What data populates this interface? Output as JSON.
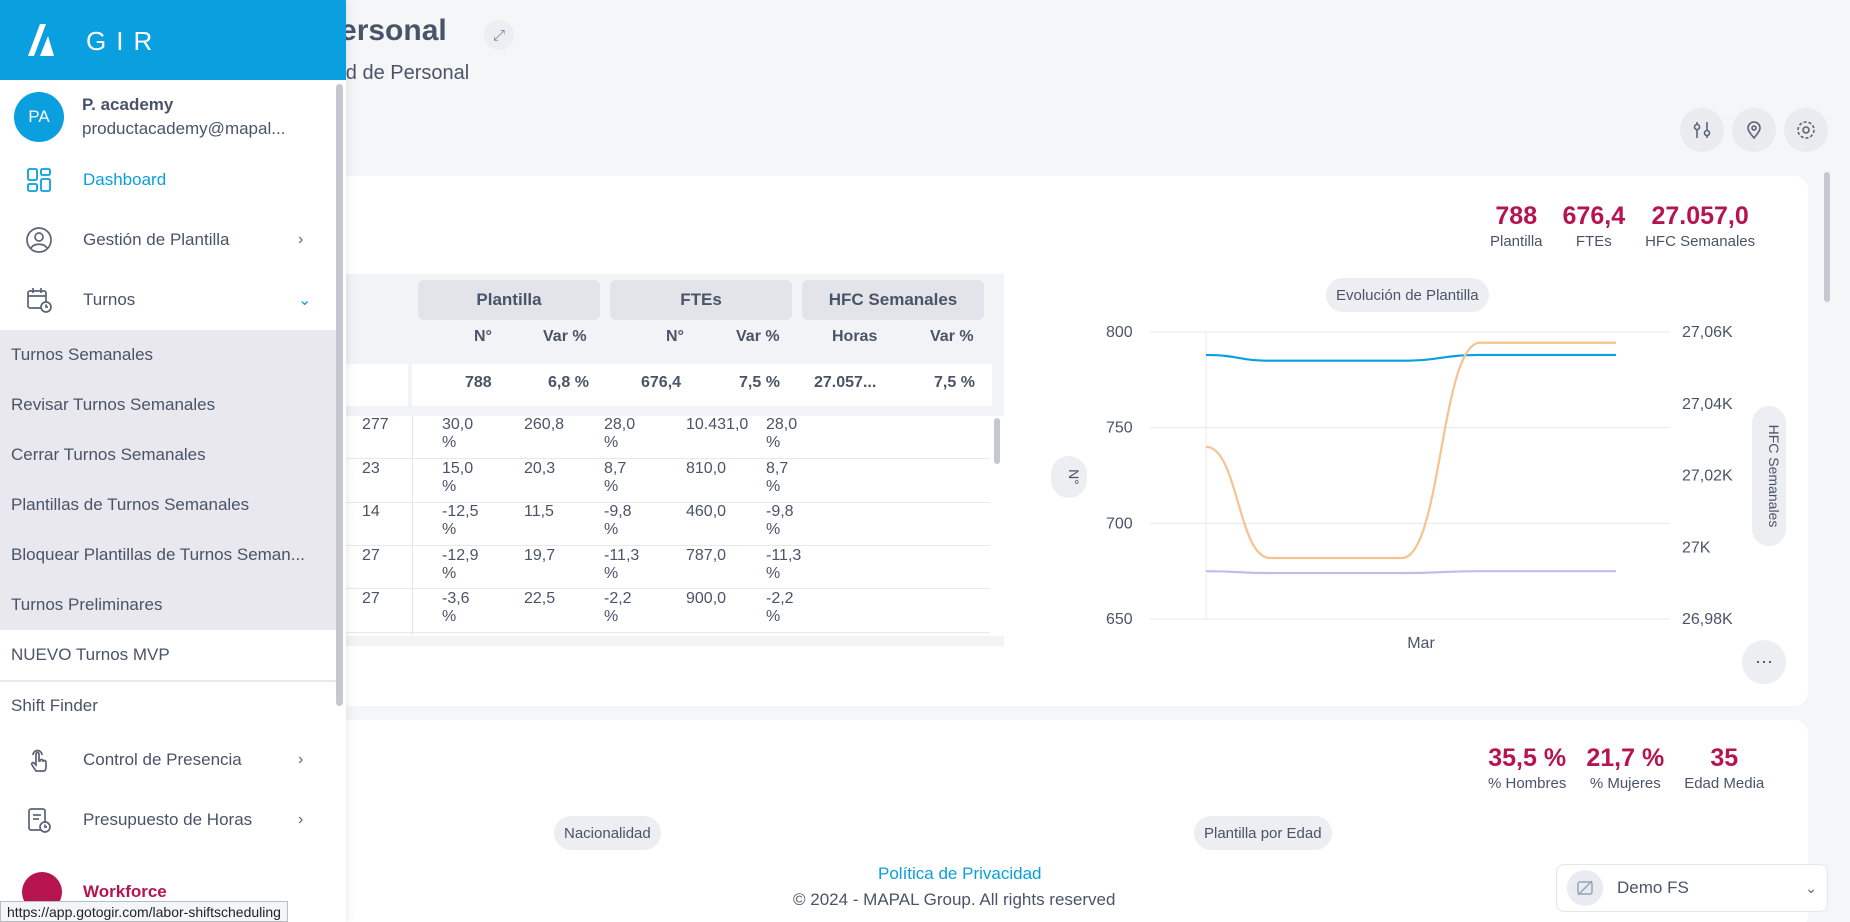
{
  "page": {
    "title": "Personal",
    "subtitle": "ard de Personal"
  },
  "kpis1": [
    {
      "value": "788",
      "label": "Plantilla"
    },
    {
      "value": "676,4",
      "label": "FTEs"
    },
    {
      "value": "27.057,0",
      "label": "HFC Semanales"
    }
  ],
  "table": {
    "groups": [
      "Plantilla",
      "FTEs",
      "HFC Semanales"
    ],
    "subheaders": [
      "N°",
      "Var %",
      "N°",
      "Var %",
      "Horas",
      "Var %"
    ],
    "total": [
      "788",
      "6,8 %",
      "676,4",
      "7,5 %",
      "27.057...",
      "7,5 %"
    ],
    "rows": [
      [
        "277",
        "30,0 %",
        "260,8",
        "28,0 %",
        "10.431,0",
        "28,0 %"
      ],
      [
        "23",
        "15,0 %",
        "20,3",
        "8,7 %",
        "810,0",
        "8,7 %"
      ],
      [
        "14",
        "-12,5 %",
        "11,5",
        "-9,8 %",
        "460,0",
        "-9,8 %"
      ],
      [
        "27",
        "-12,9 %",
        "19,7",
        "-11,3 %",
        "787,0",
        "-11,3 %"
      ],
      [
        "27",
        "-3,6 %",
        "22,5",
        "-2,2 %",
        "900,0",
        "-2,2 %"
      ]
    ]
  },
  "chart_data": {
    "type": "line",
    "title": "Evolución de Plantilla",
    "xlabel": "Mar",
    "ylabel": "N°",
    "y2label": "HFC Semanales",
    "yticks": [
      "800",
      "750",
      "700",
      "650"
    ],
    "y2ticks": [
      "27,06K",
      "27,04K",
      "27,02K",
      "27K",
      "26,98K"
    ],
    "ylim": [
      650,
      800
    ],
    "y2lim": [
      26980,
      27060
    ],
    "series": [
      {
        "axis": "left",
        "color": "#0a9fde",
        "values": [
          788,
          785,
          785,
          788,
          788
        ]
      },
      {
        "axis": "left",
        "color": "#c8b8f0",
        "values": [
          675,
          674,
          674,
          675,
          675
        ]
      },
      {
        "axis": "right",
        "color": "#f7c28f",
        "values": [
          27028,
          26997,
          26997,
          27057,
          27057
        ]
      }
    ]
  },
  "kpis2": [
    {
      "value": "35,5 %",
      "label": "% Hombres"
    },
    {
      "value": "21,7 %",
      "label": "% Mujeres"
    },
    {
      "value": "35",
      "label": "Edad Media"
    }
  ],
  "pills": {
    "nationality": "Nacionalidad",
    "age": "Plantilla por Edad"
  },
  "footer": {
    "privacy": "Política de Privacidad",
    "copyright": "© 2024 - MAPAL Group. All rights reserved"
  },
  "tenant": {
    "label": "Demo FS"
  },
  "sidebar": {
    "brand": "GIR",
    "user": {
      "initials": "PA",
      "name": "P. academy",
      "email": "productacademy@mapal..."
    },
    "nav": {
      "dashboard": "Dashboard",
      "gestion": "Gestión de Plantilla",
      "turnos": "Turnos",
      "control": "Control de Presencia",
      "presupuesto": "Presupuesto de Horas",
      "workforce": "Workforce"
    },
    "turnos_sub": [
      "Turnos Semanales",
      "Revisar Turnos Semanales",
      "Cerrar Turnos Semanales",
      "Plantillas de Turnos Semanales",
      "Bloquear Plantillas de Turnos Seman...",
      "Turnos Preliminares",
      "NUEVO Turnos MVP",
      "Shift Finder"
    ]
  },
  "status_url": "https://app.gotogir.com/labor-shiftscheduling"
}
